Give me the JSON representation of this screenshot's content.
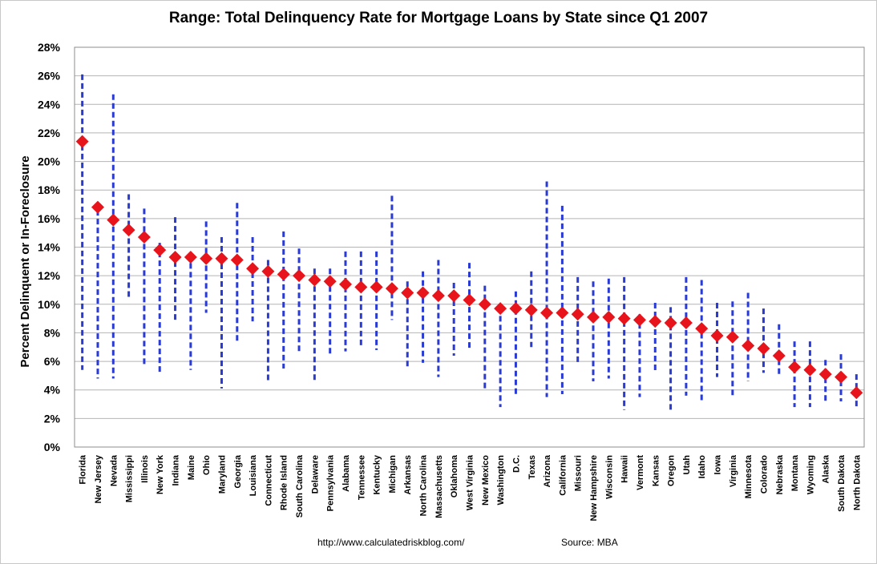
{
  "chart_data": {
    "type": "scatter",
    "title": "Range: Total Delinquency Rate for Mortgage Loans by State since Q1 2007",
    "ylabel": "Percent Delinquent  or In-Foreclosure",
    "xlabel": "",
    "ylim": [
      0,
      28
    ],
    "ytick_labels": [
      "0%",
      "2%",
      "4%",
      "6%",
      "8%",
      "10%",
      "12%",
      "14%",
      "16%",
      "18%",
      "20%",
      "22%",
      "24%",
      "26%",
      "28%"
    ],
    "grid": true,
    "legend": "none",
    "colors": {
      "range": "#2a3bd4",
      "current": "#e8141b",
      "grid": "#b4b4b4"
    },
    "categories": [
      "Florida",
      "New Jersey",
      "Nevada",
      "Mississippi",
      "Illinois",
      "New York",
      "Indiana",
      "Maine",
      "Ohio",
      "Maryland",
      "Georgia",
      "Louisiana",
      "Connecticut",
      "Rhode Island",
      "South Carolina",
      "Delaware",
      "Pennsylvania",
      "Alabama",
      "Tennessee",
      "Kentucky",
      "Michigan",
      "Arkansas",
      "North Carolina",
      "Massachusetts",
      "Oklahoma",
      "West Virginia",
      "New Mexico",
      "Washington",
      "D.C.",
      "Texas",
      "Arizona",
      "California",
      "Missouri",
      "New Hampshire",
      "Wisconsin",
      "Hawaii",
      "Vermont",
      "Kansas",
      "Oregon",
      "Utah",
      "Idaho",
      "Iowa",
      "Virginia",
      "Minnesota",
      "Colorado",
      "Nebraska",
      "Montana",
      "Wyoming",
      "Alaska",
      "South Dakota",
      "North Dakota"
    ],
    "current": [
      21.4,
      16.8,
      15.9,
      15.2,
      14.7,
      13.8,
      13.3,
      13.3,
      13.2,
      13.2,
      13.1,
      12.5,
      12.3,
      12.1,
      12.0,
      11.7,
      11.6,
      11.4,
      11.2,
      11.2,
      11.1,
      10.8,
      10.8,
      10.6,
      10.6,
      10.3,
      10.0,
      9.7,
      9.7,
      9.6,
      9.4,
      9.4,
      9.3,
      9.1,
      9.1,
      9.0,
      8.9,
      8.8,
      8.7,
      8.7,
      8.3,
      7.8,
      7.7,
      7.1,
      6.9,
      6.4,
      5.6,
      5.4,
      5.1,
      4.9,
      3.8
    ],
    "range_high": [
      26.1,
      16.6,
      24.7,
      17.7,
      16.7,
      14.3,
      16.1,
      13.5,
      15.8,
      14.7,
      17.1,
      14.7,
      13.1,
      15.1,
      13.9,
      12.5,
      12.5,
      13.7,
      13.7,
      13.7,
      17.6,
      11.6,
      12.3,
      13.1,
      11.5,
      12.9,
      11.3,
      9.8,
      10.9,
      12.3,
      18.6,
      16.9,
      11.9,
      11.6,
      11.8,
      11.9,
      9.3,
      10.1,
      9.8,
      11.9,
      11.7,
      10.1,
      10.2,
      10.8,
      9.7,
      8.6,
      7.4,
      7.4,
      6.1,
      6.5,
      5.1
    ],
    "range_low": [
      5.4,
      4.8,
      4.8,
      10.4,
      5.8,
      5.2,
      8.9,
      5.4,
      9.4,
      4.1,
      7.4,
      8.8,
      4.5,
      5.5,
      6.5,
      4.5,
      6.4,
      6.7,
      7.1,
      6.8,
      8.9,
      5.5,
      5.9,
      4.9,
      6.4,
      6.8,
      4.0,
      2.8,
      3.7,
      7.0,
      3.5,
      3.7,
      5.9,
      4.6,
      4.8,
      2.6,
      3.5,
      5.3,
      2.6,
      3.6,
      3.2,
      4.9,
      3.6,
      4.6,
      5.2,
      5.0,
      2.8,
      2.8,
      3.2,
      3.2,
      2.7
    ]
  },
  "footer": {
    "url": "http://www.calculatedriskblog.com/",
    "source": "Source: MBA"
  }
}
